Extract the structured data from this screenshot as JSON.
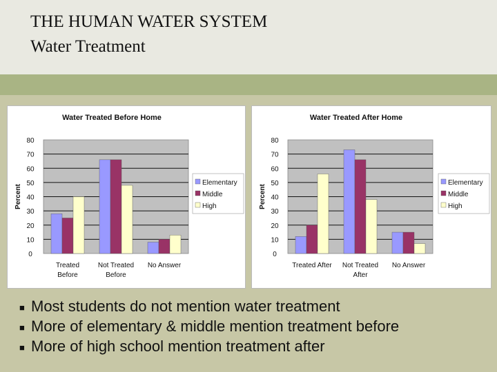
{
  "slide": {
    "title_line1": "THE HUMAN WATER SYSTEM",
    "title_line2": "Water Treatment",
    "bullets": [
      "Most students do not mention water treatment",
      "More of elementary & middle mention treatment before",
      "More of high school mention treatment after"
    ]
  },
  "colors": {
    "elementary": "#9999ff",
    "middle": "#993366",
    "high": "#ffffcc",
    "plot_bg": "#c0c0c0",
    "band": "#a9b484"
  },
  "chart_data": [
    {
      "type": "bar",
      "title": "Water Treated Before Home",
      "ylabel": "Percent",
      "categories": [
        [
          "Treated",
          "Before"
        ],
        [
          "Not Treated",
          "Before"
        ],
        [
          "No Answer"
        ]
      ],
      "series": [
        {
          "name": "Elementary",
          "values": [
            28,
            66,
            8
          ]
        },
        {
          "name": "Middle",
          "values": [
            25,
            66,
            10
          ]
        },
        {
          "name": "High",
          "values": [
            40,
            48,
            13
          ]
        }
      ],
      "ylim": [
        0,
        80
      ],
      "yticks": [
        0,
        10,
        20,
        30,
        40,
        50,
        60,
        70,
        80
      ],
      "grid": true,
      "legend": "right"
    },
    {
      "type": "bar",
      "title": "Water Treated After Home",
      "ylabel": "Percent",
      "categories": [
        [
          "Treated After"
        ],
        [
          "Not Treated",
          "After"
        ],
        [
          "No Answer"
        ]
      ],
      "series": [
        {
          "name": "Elementary",
          "values": [
            12,
            73,
            15
          ]
        },
        {
          "name": "Middle",
          "values": [
            20,
            66,
            15
          ]
        },
        {
          "name": "High",
          "values": [
            56,
            38,
            7
          ]
        }
      ],
      "ylim": [
        0,
        80
      ],
      "yticks": [
        0,
        10,
        20,
        30,
        40,
        50,
        60,
        70,
        80
      ],
      "grid": true,
      "legend": "right"
    }
  ]
}
